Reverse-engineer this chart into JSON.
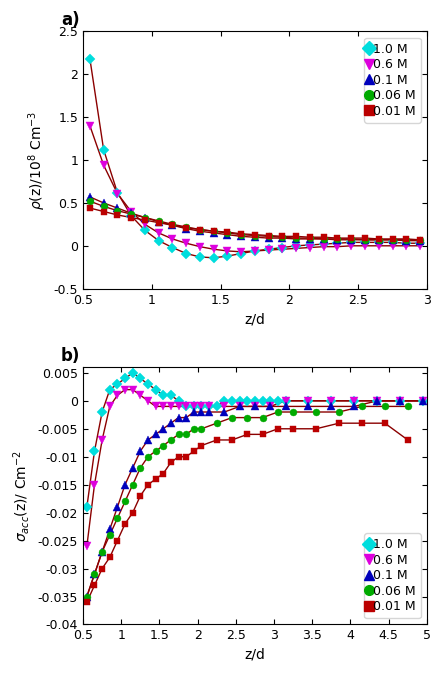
{
  "panel_a": {
    "title": "a)",
    "xlabel": "z/d",
    "ylabel": "ρ(z)/10⁸ Cm⁻³",
    "xlim": [
      0.5,
      3.0
    ],
    "ylim": [
      -0.5,
      2.5
    ],
    "xticks": [
      0.5,
      1.0,
      1.5,
      2.0,
      2.5,
      3.0
    ],
    "xtick_labels": [
      "0.5",
      "1",
      "1.5",
      "2",
      "2.5",
      "3"
    ],
    "yticks": [
      -0.5,
      0.0,
      0.5,
      1.0,
      1.5,
      2.0,
      2.5
    ],
    "ytick_labels": [
      "-0.5",
      "0",
      "0.5",
      "1",
      "1.5",
      "2",
      "2.5"
    ],
    "series": [
      {
        "label": "1.0 M",
        "color": "#00dddd",
        "marker": "D",
        "markersize": 5,
        "x": [
          0.55,
          0.65,
          0.75,
          0.85,
          0.95,
          1.05,
          1.15,
          1.25,
          1.35,
          1.45,
          1.55,
          1.65,
          1.75,
          1.85,
          1.95,
          2.05,
          2.15,
          2.25,
          2.35,
          2.45,
          2.55,
          2.65,
          2.75,
          2.85,
          2.95
        ],
        "y": [
          2.18,
          1.12,
          0.62,
          0.35,
          0.18,
          0.06,
          -0.02,
          -0.09,
          -0.13,
          -0.14,
          -0.12,
          -0.09,
          -0.06,
          -0.04,
          -0.02,
          0.0,
          0.01,
          0.02,
          0.03,
          0.04,
          0.04,
          0.04,
          0.04,
          0.03,
          0.03
        ]
      },
      {
        "label": "0.6 M",
        "color": "#dd00dd",
        "marker": "v",
        "markersize": 6,
        "x": [
          0.55,
          0.65,
          0.75,
          0.85,
          0.95,
          1.05,
          1.15,
          1.25,
          1.35,
          1.45,
          1.55,
          1.65,
          1.75,
          1.85,
          1.95,
          2.05,
          2.15,
          2.25,
          2.35,
          2.45,
          2.55,
          2.65,
          2.75,
          2.85,
          2.95
        ],
        "y": [
          1.4,
          0.94,
          0.61,
          0.4,
          0.25,
          0.15,
          0.08,
          0.03,
          -0.01,
          -0.04,
          -0.06,
          -0.07,
          -0.06,
          -0.05,
          -0.04,
          -0.03,
          -0.02,
          -0.01,
          -0.01,
          0.0,
          0.0,
          0.0,
          0.0,
          0.0,
          0.0
        ]
      },
      {
        "label": "0.1 M",
        "color": "#0000bb",
        "marker": "^",
        "markersize": 6,
        "x": [
          0.55,
          0.65,
          0.75,
          0.85,
          0.95,
          1.05,
          1.15,
          1.25,
          1.35,
          1.45,
          1.55,
          1.65,
          1.75,
          1.85,
          1.95,
          2.05,
          2.15,
          2.25,
          2.35,
          2.45,
          2.55,
          2.65,
          2.75,
          2.85,
          2.95
        ],
        "y": [
          0.57,
          0.5,
          0.44,
          0.38,
          0.33,
          0.28,
          0.24,
          0.2,
          0.17,
          0.15,
          0.13,
          0.11,
          0.1,
          0.09,
          0.09,
          0.08,
          0.08,
          0.08,
          0.07,
          0.07,
          0.07,
          0.07,
          0.07,
          0.06,
          0.06
        ]
      },
      {
        "label": "0.06 M",
        "color": "#00aa00",
        "marker": "o",
        "markersize": 5,
        "x": [
          0.55,
          0.65,
          0.75,
          0.85,
          0.95,
          1.05,
          1.15,
          1.25,
          1.35,
          1.45,
          1.55,
          1.65,
          1.75,
          1.85,
          1.95,
          2.05,
          2.15,
          2.25,
          2.35,
          2.45,
          2.55,
          2.65,
          2.75,
          2.85,
          2.95
        ],
        "y": [
          0.52,
          0.46,
          0.41,
          0.37,
          0.33,
          0.29,
          0.25,
          0.22,
          0.19,
          0.17,
          0.15,
          0.13,
          0.12,
          0.11,
          0.1,
          0.09,
          0.09,
          0.08,
          0.08,
          0.08,
          0.07,
          0.07,
          0.07,
          0.07,
          0.07
        ]
      },
      {
        "label": "0.01 M",
        "color": "#bb0000",
        "marker": "s",
        "markersize": 5,
        "x": [
          0.55,
          0.65,
          0.75,
          0.85,
          0.95,
          1.05,
          1.15,
          1.25,
          1.35,
          1.45,
          1.55,
          1.65,
          1.75,
          1.85,
          1.95,
          2.05,
          2.15,
          2.25,
          2.35,
          2.45,
          2.55,
          2.65,
          2.75,
          2.85,
          2.95
        ],
        "y": [
          0.44,
          0.4,
          0.36,
          0.33,
          0.3,
          0.27,
          0.24,
          0.21,
          0.19,
          0.17,
          0.16,
          0.14,
          0.13,
          0.12,
          0.11,
          0.11,
          0.1,
          0.1,
          0.09,
          0.09,
          0.09,
          0.08,
          0.08,
          0.08,
          0.07
        ]
      }
    ],
    "legend_labels": [
      "1.0 M",
      "0.6 M",
      "0.1 M",
      "0.06 M",
      "0.01 M"
    ],
    "legend_colors": [
      "#00dddd",
      "#dd00dd",
      "#0000bb",
      "#00aa00",
      "#bb0000"
    ],
    "legend_markers": [
      "D",
      "v",
      "^",
      "o",
      "s"
    ]
  },
  "panel_b": {
    "title": "b)",
    "xlabel": "z/d",
    "ylabel": "σ_acc(z)/ Cm⁻²",
    "xlim": [
      0.5,
      5.0
    ],
    "ylim": [
      -0.04,
      0.006
    ],
    "xticks": [
      0.5,
      1.0,
      1.5,
      2.0,
      2.5,
      3.0,
      3.5,
      4.0,
      4.5,
      5.0
    ],
    "xtick_labels": [
      "0.5",
      "1",
      "1.5",
      "2",
      "2.5",
      "3",
      "3.5",
      "4",
      "4.5",
      "5"
    ],
    "yticks": [
      -0.04,
      -0.035,
      -0.03,
      -0.025,
      -0.02,
      -0.015,
      -0.01,
      -0.005,
      0.0,
      0.005
    ],
    "ytick_labels": [
      "-0.04",
      "-0.035",
      "-0.03",
      "-0.025",
      "-0.02",
      "-0.015",
      "-0.01",
      "-0.005",
      "0",
      "0.005"
    ],
    "series": [
      {
        "label": "1.0 M",
        "color": "#00dddd",
        "marker": "D",
        "markersize": 5,
        "x": [
          0.55,
          0.65,
          0.75,
          0.85,
          0.95,
          1.05,
          1.15,
          1.25,
          1.35,
          1.45,
          1.55,
          1.65,
          1.75,
          1.85,
          1.95,
          2.05,
          2.15,
          2.25,
          2.35,
          2.45,
          2.55,
          2.65,
          2.75,
          2.85,
          2.95,
          3.05,
          3.15,
          3.45,
          3.75,
          4.05,
          4.35,
          4.65,
          4.95
        ],
        "y": [
          -0.019,
          -0.009,
          -0.002,
          0.002,
          0.003,
          0.004,
          0.005,
          0.004,
          0.003,
          0.002,
          0.001,
          0.001,
          0.0,
          -0.001,
          -0.001,
          -0.001,
          -0.001,
          -0.001,
          0.0,
          0.0,
          0.0,
          0.0,
          0.0,
          0.0,
          0.0,
          0.0,
          0.0,
          0.0,
          0.0,
          0.0,
          0.0,
          0.0,
          0.0
        ]
      },
      {
        "label": "0.6 M",
        "color": "#dd00dd",
        "marker": "v",
        "markersize": 6,
        "x": [
          0.55,
          0.65,
          0.75,
          0.85,
          0.95,
          1.05,
          1.15,
          1.25,
          1.35,
          1.45,
          1.55,
          1.65,
          1.75,
          1.85,
          1.95,
          2.05,
          2.15,
          2.35,
          2.55,
          2.75,
          2.95,
          3.15,
          3.45,
          3.75,
          4.05,
          4.35,
          4.65,
          4.95
        ],
        "y": [
          -0.026,
          -0.015,
          -0.007,
          -0.001,
          0.001,
          0.002,
          0.002,
          0.001,
          0.0,
          -0.001,
          -0.001,
          -0.001,
          -0.001,
          -0.001,
          -0.001,
          -0.001,
          -0.001,
          -0.001,
          -0.001,
          -0.001,
          -0.001,
          0.0,
          0.0,
          0.0,
          0.0,
          0.0,
          0.0,
          0.0
        ]
      },
      {
        "label": "0.1 M",
        "color": "#0000bb",
        "marker": "^",
        "markersize": 6,
        "x": [
          0.55,
          0.65,
          0.75,
          0.85,
          0.95,
          1.05,
          1.15,
          1.25,
          1.35,
          1.45,
          1.55,
          1.65,
          1.75,
          1.85,
          1.95,
          2.05,
          2.15,
          2.35,
          2.55,
          2.75,
          2.95,
          3.15,
          3.45,
          3.75,
          4.05,
          4.35,
          4.65,
          4.95
        ],
        "y": [
          -0.035,
          -0.031,
          -0.027,
          -0.023,
          -0.019,
          -0.015,
          -0.012,
          -0.009,
          -0.007,
          -0.006,
          -0.005,
          -0.004,
          -0.003,
          -0.003,
          -0.002,
          -0.002,
          -0.002,
          -0.002,
          -0.001,
          -0.001,
          -0.001,
          -0.001,
          -0.001,
          -0.001,
          -0.001,
          0.0,
          0.0,
          0.0
        ]
      },
      {
        "label": "0.06 M",
        "color": "#00aa00",
        "marker": "o",
        "markersize": 5,
        "x": [
          0.55,
          0.65,
          0.75,
          0.85,
          0.95,
          1.05,
          1.15,
          1.25,
          1.35,
          1.45,
          1.55,
          1.65,
          1.75,
          1.85,
          1.95,
          2.05,
          2.25,
          2.45,
          2.65,
          2.85,
          3.05,
          3.25,
          3.55,
          3.85,
          4.15,
          4.45,
          4.75
        ],
        "y": [
          -0.035,
          -0.031,
          -0.027,
          -0.024,
          -0.021,
          -0.018,
          -0.015,
          -0.012,
          -0.01,
          -0.009,
          -0.008,
          -0.007,
          -0.006,
          -0.006,
          -0.005,
          -0.005,
          -0.004,
          -0.003,
          -0.003,
          -0.003,
          -0.002,
          -0.002,
          -0.002,
          -0.002,
          -0.001,
          -0.001,
          -0.001
        ]
      },
      {
        "label": "0.01 M",
        "color": "#bb0000",
        "marker": "s",
        "markersize": 5,
        "x": [
          0.55,
          0.65,
          0.75,
          0.85,
          0.95,
          1.05,
          1.15,
          1.25,
          1.35,
          1.45,
          1.55,
          1.65,
          1.75,
          1.85,
          1.95,
          2.05,
          2.25,
          2.45,
          2.65,
          2.85,
          3.05,
          3.25,
          3.55,
          3.85,
          4.15,
          4.45,
          4.75
        ],
        "y": [
          -0.036,
          -0.033,
          -0.03,
          -0.028,
          -0.025,
          -0.022,
          -0.02,
          -0.017,
          -0.015,
          -0.014,
          -0.013,
          -0.011,
          -0.01,
          -0.01,
          -0.009,
          -0.008,
          -0.007,
          -0.007,
          -0.006,
          -0.006,
          -0.005,
          -0.005,
          -0.005,
          -0.004,
          -0.004,
          -0.004,
          -0.007
        ]
      }
    ],
    "legend_labels": [
      "1.0 M",
      "0.6 M",
      "0.1 M",
      "0.06 M",
      "0.01 M"
    ],
    "legend_colors": [
      "#00dddd",
      "#dd00dd",
      "#0000bb",
      "#00aa00",
      "#bb0000"
    ],
    "legend_markers": [
      "D",
      "v",
      "^",
      "o",
      "s"
    ]
  },
  "line_color": "#8b0000",
  "line_width": 1.0,
  "bg_color": "#ffffff",
  "tick_fontsize": 9,
  "label_fontsize": 10,
  "legend_fontsize": 9
}
